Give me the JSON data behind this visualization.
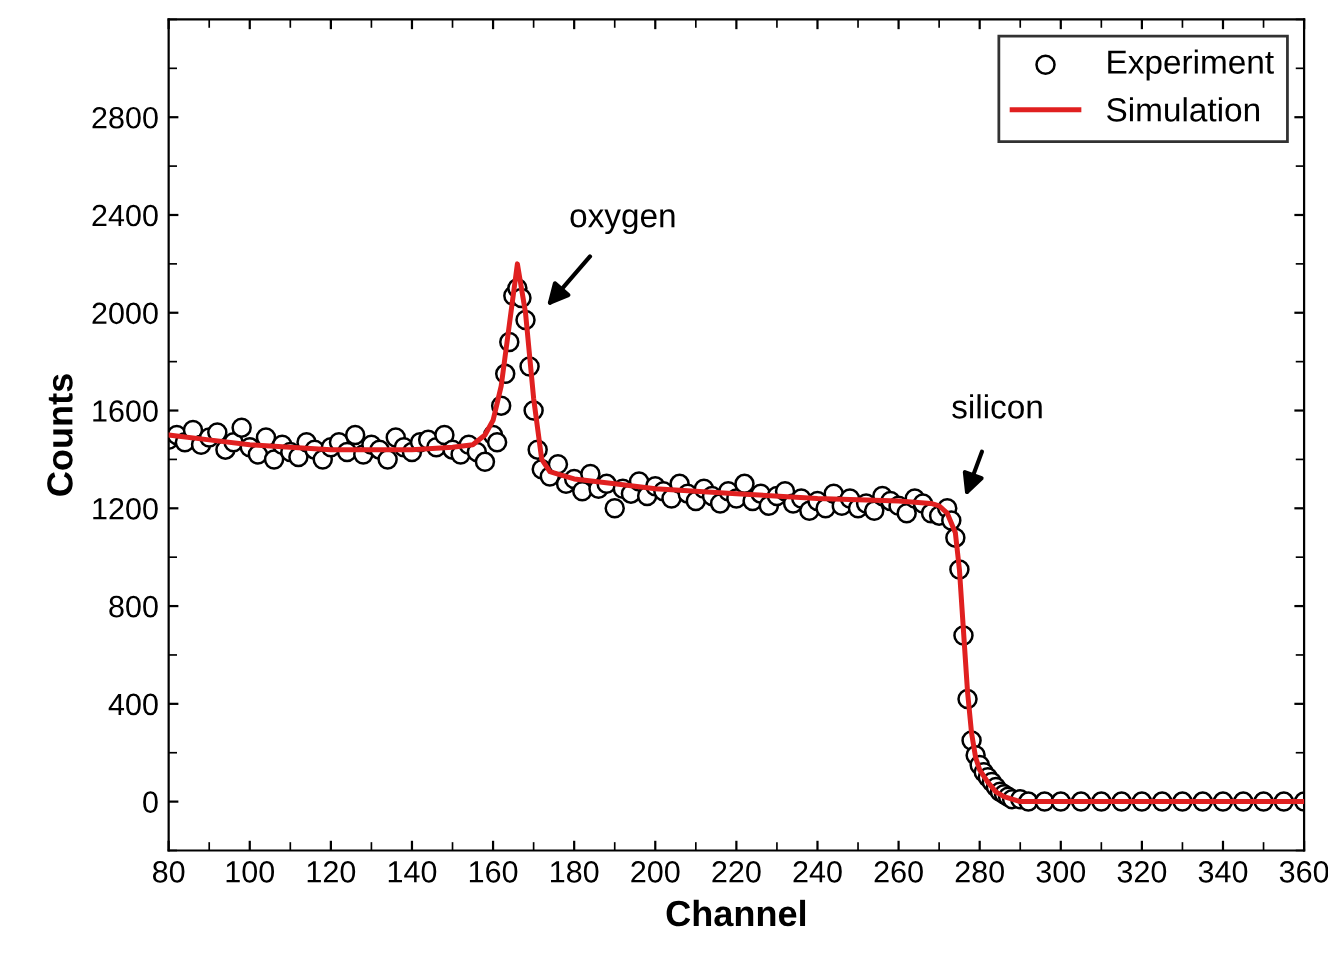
{
  "chart_data": {
    "type": "line",
    "xlabel": "Channel",
    "ylabel": "Counts",
    "xlim": [
      80,
      360
    ],
    "ylim": [
      -200,
      3200
    ],
    "xticks": [
      80,
      100,
      120,
      140,
      160,
      180,
      200,
      220,
      240,
      260,
      280,
      300,
      320,
      340,
      360
    ],
    "yticks": [
      0,
      400,
      800,
      1200,
      1600,
      2000,
      2400,
      2800
    ],
    "legend": "top right",
    "grid": false,
    "annotations": [
      "oxygen",
      "silicon"
    ],
    "series": [
      {
        "name": "Experiment",
        "type": "scatter",
        "marker": "circle",
        "color": "#000000",
        "x": [
          80,
          82,
          84,
          86,
          88,
          90,
          92,
          94,
          96,
          98,
          100,
          102,
          104,
          106,
          108,
          110,
          112,
          114,
          116,
          118,
          120,
          122,
          124,
          126,
          128,
          130,
          132,
          134,
          136,
          138,
          140,
          142,
          144,
          146,
          148,
          150,
          152,
          154,
          156,
          158,
          160,
          161,
          162,
          163,
          164,
          165,
          166,
          167,
          168,
          169,
          170,
          171,
          172,
          174,
          176,
          178,
          180,
          182,
          184,
          186,
          188,
          190,
          192,
          194,
          196,
          198,
          200,
          202,
          204,
          206,
          208,
          210,
          212,
          214,
          216,
          218,
          220,
          222,
          224,
          226,
          228,
          230,
          232,
          234,
          236,
          238,
          240,
          242,
          244,
          246,
          248,
          250,
          252,
          254,
          256,
          258,
          260,
          262,
          264,
          266,
          268,
          270,
          272,
          273,
          274,
          275,
          276,
          277,
          278,
          279,
          280,
          281,
          282,
          283,
          284,
          285,
          286,
          287,
          288,
          290,
          292,
          296,
          300,
          305,
          310,
          315,
          320,
          325,
          330,
          335,
          340,
          345,
          350,
          355,
          360
        ],
        "values": [
          1480,
          1500,
          1470,
          1520,
          1460,
          1490,
          1510,
          1440,
          1470,
          1530,
          1450,
          1420,
          1490,
          1400,
          1460,
          1430,
          1410,
          1470,
          1440,
          1400,
          1450,
          1470,
          1430,
          1500,
          1420,
          1460,
          1440,
          1400,
          1490,
          1450,
          1430,
          1470,
          1480,
          1450,
          1500,
          1440,
          1420,
          1460,
          1430,
          1390,
          1500,
          1470,
          1620,
          1750,
          1880,
          2070,
          2100,
          2060,
          1970,
          1780,
          1600,
          1440,
          1360,
          1330,
          1380,
          1300,
          1320,
          1270,
          1340,
          1280,
          1300,
          1200,
          1280,
          1260,
          1310,
          1250,
          1290,
          1270,
          1240,
          1300,
          1260,
          1230,
          1280,
          1250,
          1220,
          1270,
          1240,
          1300,
          1230,
          1260,
          1210,
          1250,
          1270,
          1220,
          1240,
          1190,
          1230,
          1200,
          1260,
          1210,
          1240,
          1200,
          1220,
          1190,
          1250,
          1230,
          1210,
          1180,
          1240,
          1220,
          1180,
          1170,
          1200,
          1150,
          1080,
          950,
          680,
          420,
          250,
          190,
          150,
          120,
          100,
          80,
          60,
          40,
          30,
          20,
          10,
          10,
          0,
          0,
          0,
          0,
          0,
          0,
          0,
          0,
          0,
          0,
          0,
          0,
          0,
          0,
          0
        ]
      },
      {
        "name": "Simulation",
        "marker": "none",
        "color": "#e02020",
        "x": [
          80,
          90,
          100,
          110,
          120,
          130,
          140,
          150,
          155,
          158,
          160,
          162,
          164,
          166,
          168,
          170,
          172,
          174,
          176,
          180,
          190,
          200,
          220,
          240,
          260,
          268,
          270,
          272,
          274,
          275,
          276,
          277,
          278,
          279,
          280,
          282,
          284,
          286,
          288,
          290,
          300,
          320,
          340,
          360
        ],
        "values": [
          1500,
          1480,
          1460,
          1450,
          1440,
          1440,
          1440,
          1450,
          1460,
          1500,
          1560,
          1700,
          1950,
          2200,
          2000,
          1650,
          1400,
          1350,
          1340,
          1320,
          1300,
          1280,
          1260,
          1240,
          1230,
          1220,
          1210,
          1180,
          1100,
          950,
          700,
          450,
          280,
          180,
          130,
          80,
          40,
          20,
          10,
          0,
          0,
          0,
          0,
          0
        ]
      }
    ]
  }
}
